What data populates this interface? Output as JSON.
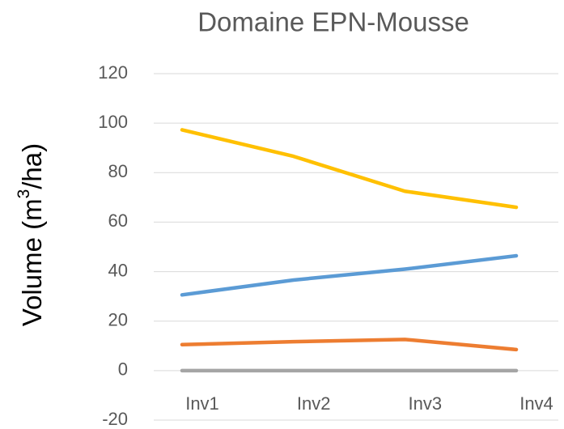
{
  "chart_data": {
    "type": "line",
    "title": "Domaine EPN-Mousse",
    "ylabel": [
      "Volume (m",
      "3",
      "/ha)"
    ],
    "categories": [
      "Inv1",
      "Inv2",
      "Inv3",
      "Inv4"
    ],
    "series": [
      {
        "color": "#ffc000",
        "values": [
          97.3,
          86.6,
          72.5,
          66
        ]
      },
      {
        "color": "#5b9bd5",
        "values": [
          30.6,
          36.6,
          41,
          46.4
        ]
      },
      {
        "color": "#ed7d31",
        "values": [
          10.5,
          11.7,
          12.6,
          8.5
        ]
      },
      {
        "color": "#a5a5a5",
        "values": [
          0,
          0,
          0,
          0
        ]
      }
    ],
    "ylim": [
      -20,
      120
    ],
    "yticks": [
      -20,
      0,
      20,
      40,
      60,
      80,
      100,
      120
    ],
    "grid": true
  }
}
